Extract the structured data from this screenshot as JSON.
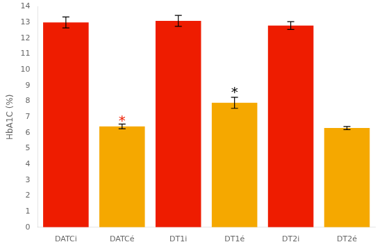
{
  "chart_data": {
    "type": "bar",
    "categories": [
      "DATCi",
      "DATCé",
      "DT1i",
      "DT1é",
      "DT2i",
      "DT2é"
    ],
    "values": [
      13.0,
      6.4,
      13.1,
      7.9,
      12.8,
      6.3
    ],
    "errors": [
      0.35,
      0.15,
      0.35,
      0.35,
      0.25,
      0.1
    ],
    "colors": [
      "#ee1c00",
      "#f5a800",
      "#ee1c00",
      "#f5a800",
      "#ee1c00",
      "#f5a800"
    ],
    "ylabel": "HbA1C (%)",
    "ylim": [
      0,
      14
    ],
    "yticks": [
      0,
      1,
      2,
      3,
      4,
      5,
      6,
      7,
      8,
      9,
      10,
      11,
      12,
      13,
      14
    ],
    "grid": false,
    "annotations": [
      {
        "category": "DATCé",
        "y": 6.55,
        "text": "*",
        "color": "#ee1c00"
      },
      {
        "category": "DT1é",
        "y": 8.35,
        "text": "*",
        "color": "black"
      }
    ]
  }
}
